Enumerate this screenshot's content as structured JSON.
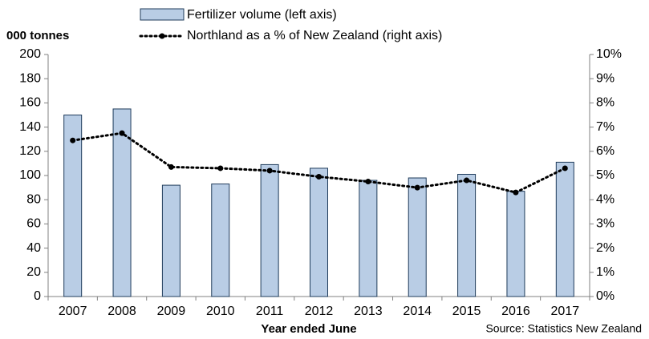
{
  "chart_data": {
    "type": "bar",
    "y_axis_label": "000 tonnes",
    "x_axis_label": "Year ended June",
    "source": "Source: Statistics New Zealand",
    "categories": [
      "2007",
      "2008",
      "2009",
      "2010",
      "2011",
      "2012",
      "2013",
      "2014",
      "2015",
      "2016",
      "2017"
    ],
    "series": [
      {
        "name": "Fertilizer volume (left axis)",
        "type": "bar",
        "color": "#b9cde5",
        "values": [
          150,
          155,
          92,
          93,
          109,
          106,
          96,
          98,
          101,
          87,
          111
        ]
      },
      {
        "name": "Northland as a % of New Zealand (right axis)",
        "type": "line",
        "axis": "y2",
        "color": "#000000",
        "values": [
          6.45,
          6.75,
          5.35,
          5.3,
          5.2,
          4.95,
          4.75,
          4.5,
          4.8,
          4.3,
          5.3
        ]
      }
    ],
    "ylim": [
      0,
      200
    ],
    "yticks": [
      0,
      20,
      40,
      60,
      80,
      100,
      120,
      140,
      160,
      180,
      200
    ],
    "y2lim": [
      0,
      10
    ],
    "y2ticks": [
      {
        "value": 0,
        "label": "0%"
      },
      {
        "value": 1,
        "label": "1%"
      },
      {
        "value": 2,
        "label": "2%"
      },
      {
        "value": 3,
        "label": "3%"
      },
      {
        "value": 4,
        "label": "4%"
      },
      {
        "value": 5,
        "label": "5%"
      },
      {
        "value": 6,
        "label": "6%"
      },
      {
        "value": 7,
        "label": "7%"
      },
      {
        "value": 8,
        "label": "8%"
      },
      {
        "value": 9,
        "label": "9%"
      },
      {
        "value": 10,
        "label": "10%"
      }
    ],
    "grid": false
  }
}
